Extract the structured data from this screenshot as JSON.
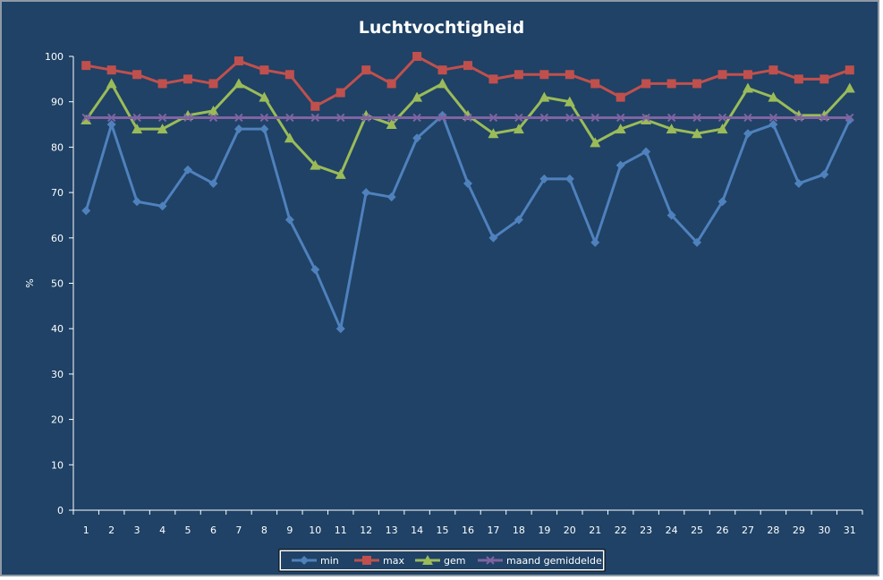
{
  "chart_data": {
    "type": "line",
    "title": "Luchtvochtigheid",
    "xlabel": "",
    "ylabel": "%",
    "ylim": [
      0,
      100
    ],
    "yticks": [
      0,
      10,
      20,
      30,
      40,
      50,
      60,
      70,
      80,
      90,
      100
    ],
    "categories": [
      "1",
      "2",
      "3",
      "4",
      "5",
      "6",
      "7",
      "8",
      "9",
      "10",
      "11",
      "12",
      "13",
      "14",
      "15",
      "16",
      "17",
      "18",
      "19",
      "20",
      "21",
      "22",
      "23",
      "24",
      "25",
      "26",
      "27",
      "28",
      "29",
      "30",
      "31"
    ],
    "grid": false,
    "legend_position": "bottom",
    "series": [
      {
        "name": "min",
        "color": "#4f81bd",
        "marker": "diamond",
        "values": [
          66,
          85,
          68,
          67,
          75,
          72,
          84,
          84,
          64,
          53,
          40,
          70,
          69,
          82,
          87,
          72,
          60,
          64,
          73,
          73,
          59,
          76,
          79,
          65,
          59,
          68,
          83,
          85,
          72,
          74,
          86
        ]
      },
      {
        "name": "max",
        "color": "#c0504d",
        "marker": "square",
        "values": [
          98,
          97,
          96,
          94,
          95,
          94,
          99,
          97,
          96,
          89,
          92,
          97,
          94,
          100,
          97,
          98,
          95,
          96,
          96,
          96,
          94,
          91,
          94,
          94,
          94,
          96,
          96,
          97,
          95,
          95,
          97
        ]
      },
      {
        "name": "gem",
        "color": "#9bbb59",
        "marker": "triangle",
        "values": [
          86,
          94,
          84,
          84,
          87,
          88,
          94,
          91,
          82,
          76,
          74,
          87,
          85,
          91,
          94,
          87,
          83,
          84,
          91,
          90,
          81,
          84,
          86,
          84,
          83,
          84,
          93,
          91,
          87,
          87,
          93
        ]
      },
      {
        "name": "maand gemiddelde",
        "color": "#8064a2",
        "marker": "x",
        "values": [
          86.5,
          86.5,
          86.5,
          86.5,
          86.5,
          86.5,
          86.5,
          86.5,
          86.5,
          86.5,
          86.5,
          86.5,
          86.5,
          86.5,
          86.5,
          86.5,
          86.5,
          86.5,
          86.5,
          86.5,
          86.5,
          86.5,
          86.5,
          86.5,
          86.5,
          86.5,
          86.5,
          86.5,
          86.5,
          86.5,
          86.5
        ]
      }
    ]
  },
  "colors": {
    "background": "#1f4266",
    "axis": "#ffffff",
    "legend_background": "#ffffff"
  }
}
